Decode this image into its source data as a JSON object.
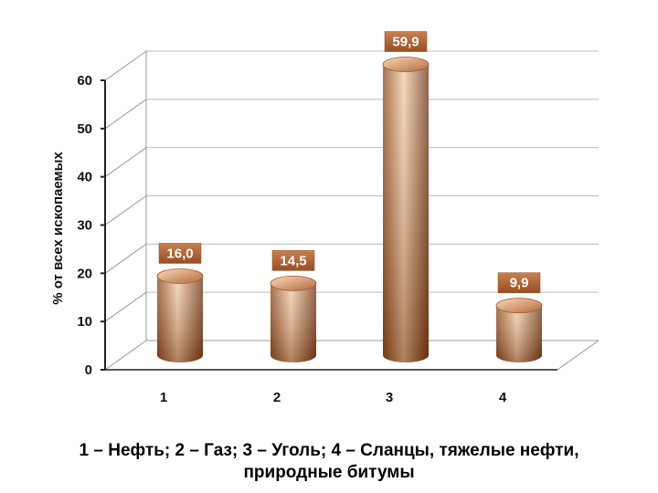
{
  "chart_data": {
    "type": "bar",
    "categories": [
      "1",
      "2",
      "3",
      "4"
    ],
    "values": [
      16.0,
      14.5,
      59.9,
      9.9
    ],
    "value_labels": [
      "16,0",
      "14,5",
      "59,9",
      "9,9"
    ],
    "title": "",
    "xlabel": "",
    "ylabel": "% от всех ископаемых",
    "ylim": [
      0,
      60
    ],
    "yticks": [
      0,
      10,
      20,
      30,
      40,
      50,
      60
    ],
    "grid": true,
    "style": "3d-cylinder",
    "colors": {
      "bar_light": "#F2C9A0",
      "bar_dark": "#7A3A12",
      "label_bg": "#B86A38",
      "grid": "#BBBBBB"
    }
  },
  "caption": {
    "line1": "1 – Нефть; 2 – Газ; 3 – Уголь; 4 – Сланцы, тяжелые нефти,",
    "line2": "природные битумы"
  }
}
